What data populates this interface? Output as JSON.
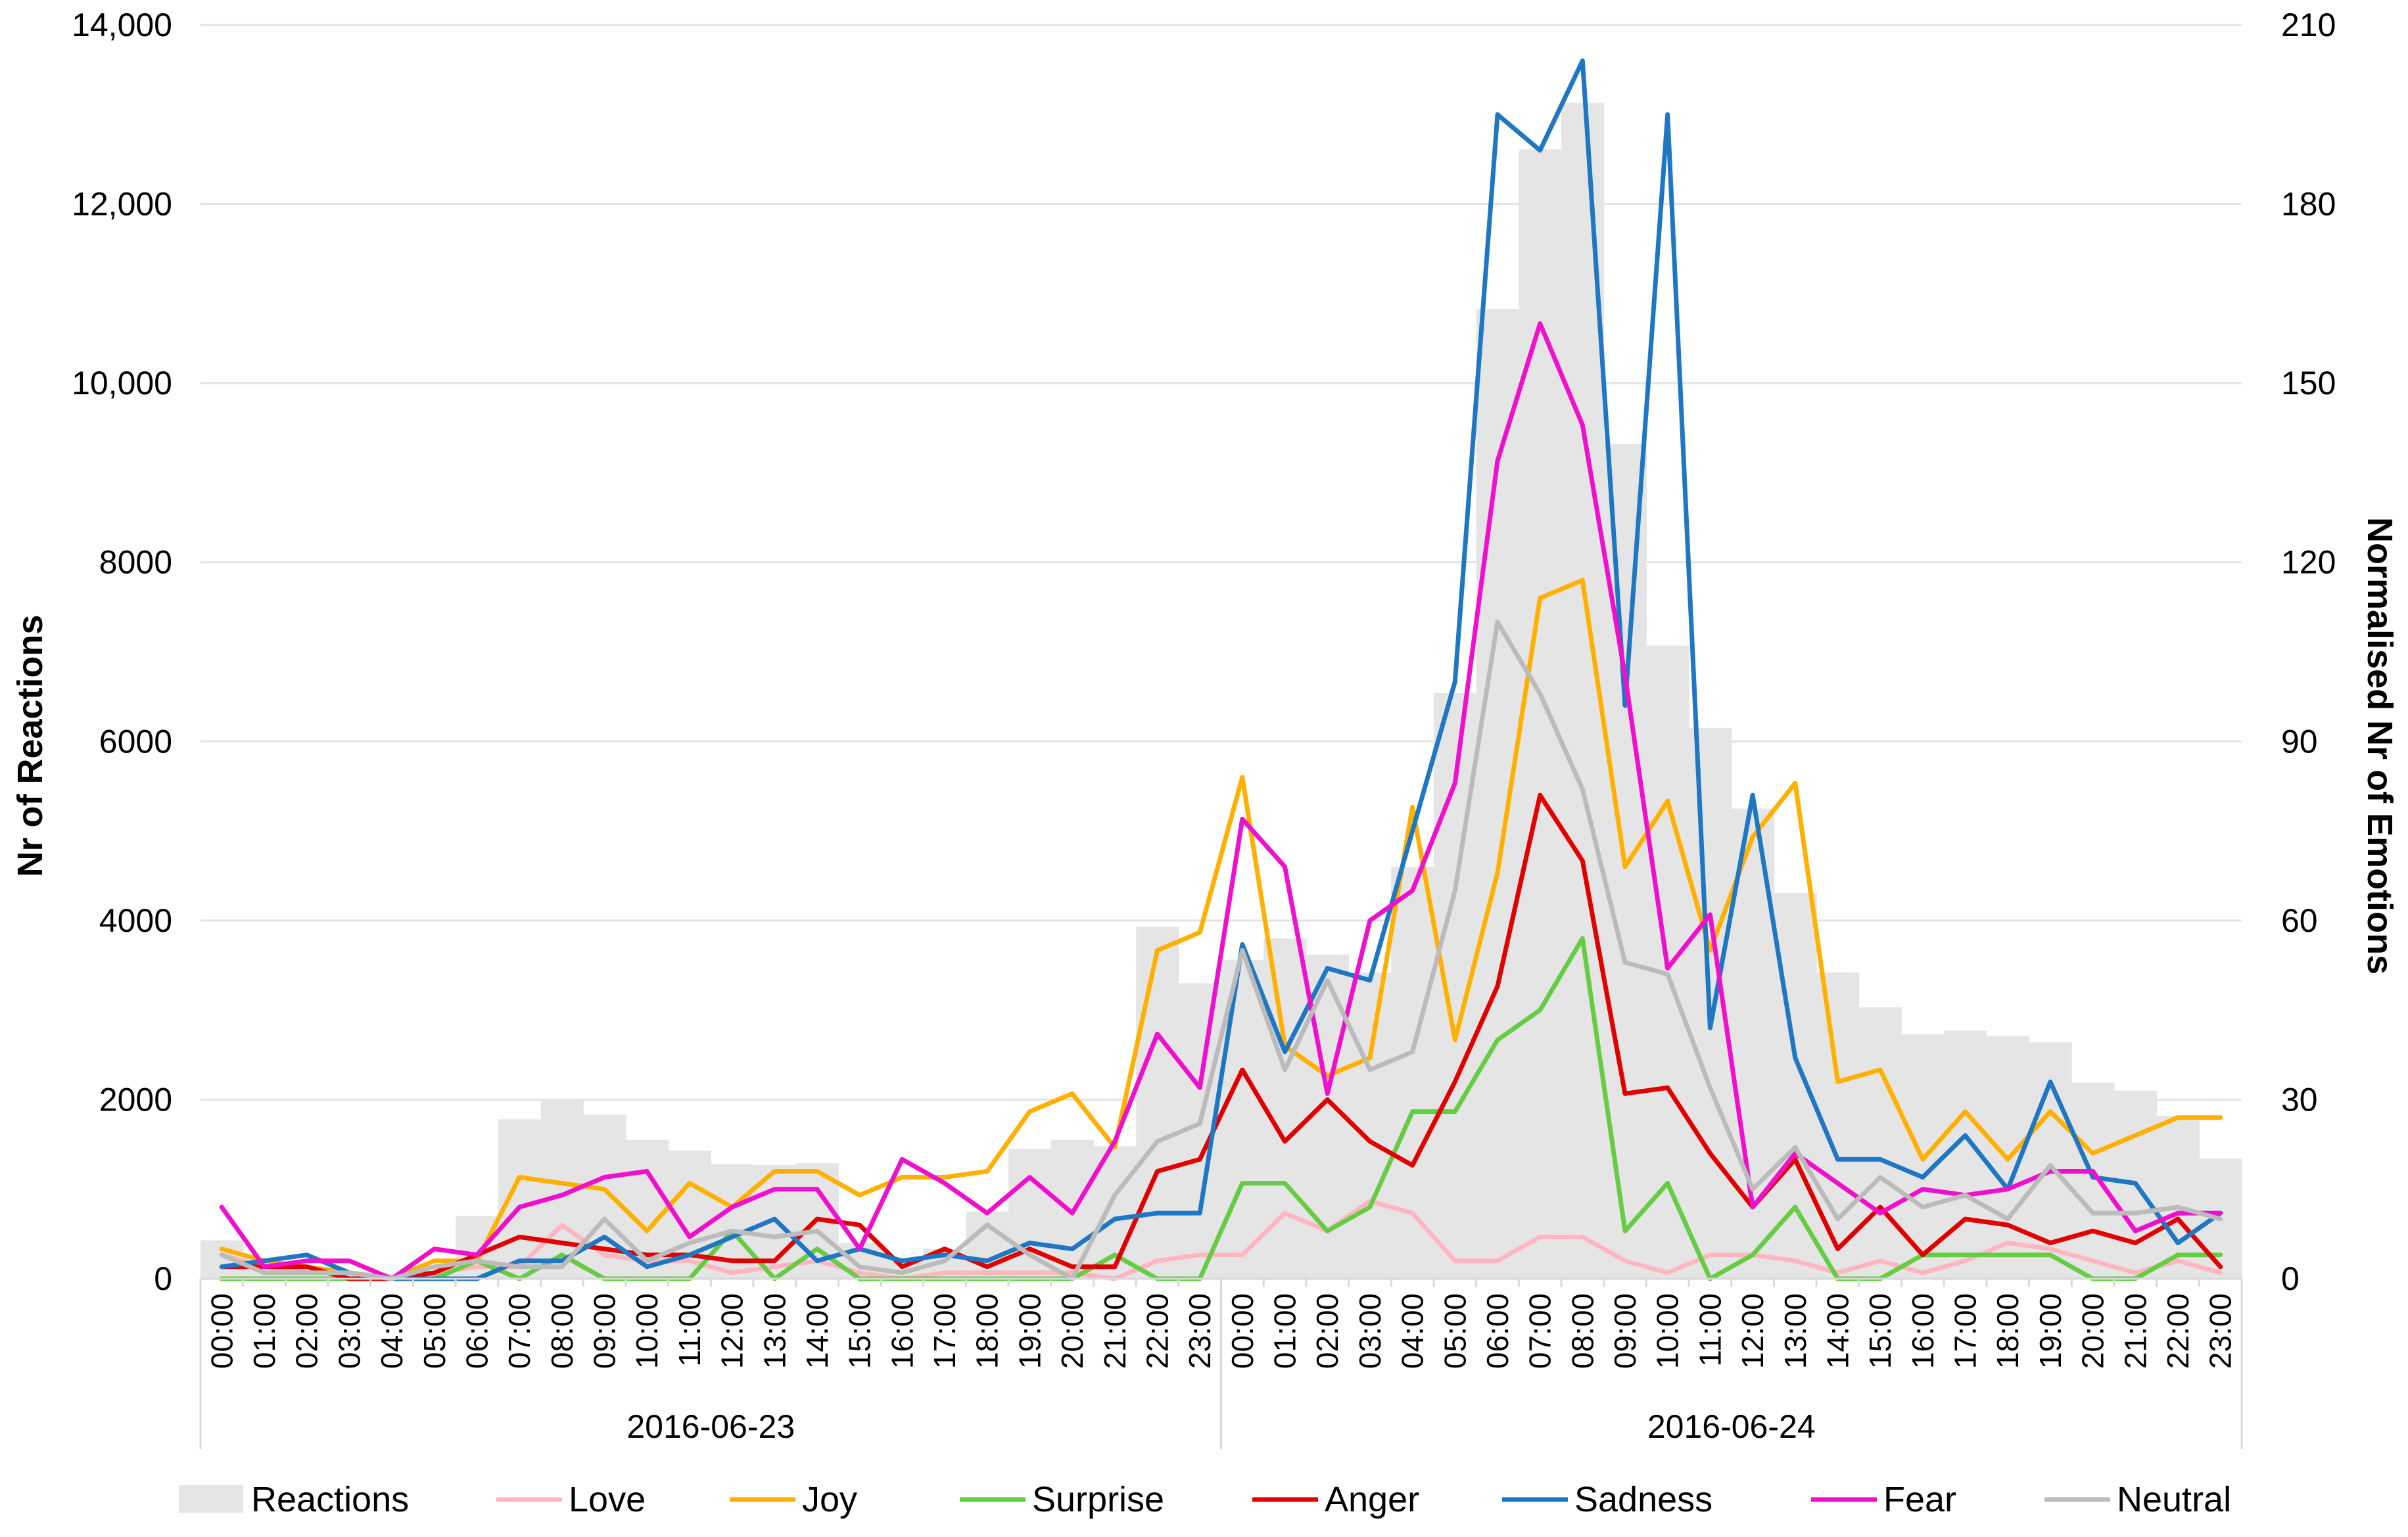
{
  "chart_data": {
    "type": "line",
    "combo": "bar-and-line (bars on left axis, lines on right axis)",
    "title": "",
    "xlabel": "",
    "ylabel_left": "Nr of Reactions",
    "ylabel_right": "Normalised Nr of Emotions",
    "ylim_left": [
      0,
      14000
    ],
    "ylim_right": [
      0,
      210
    ],
    "yticks_left": [
      "0",
      "2000",
      "4000",
      "6000",
      "8000",
      "10,000",
      "12,000",
      "14,000"
    ],
    "yticks_right": [
      "0",
      "30",
      "60",
      "90",
      "120",
      "150",
      "180",
      "210"
    ],
    "grid": "horizontal",
    "legend_position": "bottom",
    "date_groups": [
      "2016-06-23",
      "2016-06-24"
    ],
    "x": [
      "00:00",
      "01:00",
      "02:00",
      "03:00",
      "04:00",
      "05:00",
      "06:00",
      "07:00",
      "08:00",
      "09:00",
      "10:00",
      "11:00",
      "12:00",
      "13:00",
      "14:00",
      "15:00",
      "16:00",
      "17:00",
      "18:00",
      "19:00",
      "20:00",
      "21:00",
      "22:00",
      "23:00",
      "00:00",
      "01:00",
      "02:00",
      "03:00",
      "04:00",
      "05:00",
      "06:00",
      "07:00",
      "08:00",
      "09:00",
      "10:00",
      "11:00",
      "12:00",
      "13:00",
      "14:00",
      "15:00",
      "16:00",
      "17:00",
      "18:00",
      "19:00",
      "20:00",
      "21:00",
      "22:00",
      "23:00"
    ],
    "bars": {
      "name": "Reactions",
      "axis": "left",
      "color": "#e5e5e5",
      "values": [
        430,
        180,
        130,
        80,
        50,
        60,
        700,
        1780,
        2010,
        1830,
        1550,
        1430,
        1280,
        1270,
        1290,
        400,
        230,
        330,
        750,
        1450,
        1550,
        1480,
        3930,
        3300,
        3560,
        3800,
        3620,
        3420,
        4600,
        6540,
        10830,
        12610,
        13130,
        9320,
        7070,
        6150,
        5250,
        4310,
        3420,
        3030,
        2730,
        2770,
        2710,
        2640,
        2190,
        2100,
        1820,
        1340
      ]
    },
    "series": [
      {
        "name": "Love",
        "axis": "right",
        "color": "#ffb6c1",
        "values": [
          4,
          2,
          1,
          1,
          0,
          1,
          2,
          2,
          9,
          4,
          3,
          3,
          1,
          2,
          3,
          1,
          0,
          1,
          1,
          1,
          1,
          0,
          3,
          4,
          4,
          11,
          8,
          13,
          11,
          3,
          3,
          7,
          7,
          3,
          1,
          4,
          4,
          3,
          1,
          3,
          1,
          3,
          6,
          5,
          3,
          1,
          3,
          1
        ]
      },
      {
        "name": "Joy",
        "axis": "right",
        "color": "#ffb000",
        "values": [
          5,
          3,
          2,
          1,
          0,
          3,
          3,
          17,
          16,
          15,
          8,
          16,
          12,
          18,
          18,
          14,
          17,
          17,
          18,
          28,
          31,
          22,
          55,
          58,
          84,
          39,
          34,
          37,
          79,
          40,
          68,
          114,
          117,
          69,
          80,
          55,
          74,
          83,
          33,
          35,
          20,
          28,
          20,
          28,
          21,
          24,
          27,
          27
        ]
      },
      {
        "name": "Surprise",
        "axis": "right",
        "color": "#66cc44",
        "values": [
          0,
          0,
          0,
          0,
          0,
          0,
          3,
          0,
          4,
          0,
          0,
          0,
          8,
          0,
          5,
          0,
          0,
          0,
          0,
          0,
          0,
          4,
          0,
          0,
          16,
          16,
          8,
          12,
          28,
          28,
          40,
          45,
          57,
          8,
          16,
          0,
          4,
          12,
          0,
          0,
          4,
          4,
          4,
          4,
          0,
          0,
          4,
          4
        ]
      },
      {
        "name": "Anger",
        "axis": "right",
        "color": "#e00000",
        "values": [
          2,
          2,
          2,
          0,
          0,
          1,
          4,
          7,
          6,
          5,
          4,
          4,
          3,
          3,
          10,
          9,
          2,
          5,
          2,
          5,
          2,
          2,
          18,
          20,
          35,
          23,
          30,
          23,
          19,
          33,
          49,
          81,
          70,
          31,
          32,
          21,
          12,
          20,
          5,
          12,
          4,
          10,
          9,
          6,
          8,
          6,
          10,
          2
        ]
      },
      {
        "name": "Sadness",
        "axis": "right",
        "color": "#1f77c4",
        "values": [
          2,
          3,
          4,
          1,
          0,
          0,
          0,
          3,
          3,
          7,
          2,
          4,
          7,
          10,
          3,
          5,
          3,
          4,
          3,
          6,
          5,
          10,
          11,
          11,
          56,
          38,
          52,
          50,
          75,
          100,
          195,
          189,
          204,
          96,
          195,
          42,
          81,
          37,
          20,
          20,
          17,
          24,
          15,
          33,
          17,
          16,
          6,
          11
        ]
      },
      {
        "name": "Fear",
        "axis": "right",
        "color": "#ee10cc",
        "values": [
          12,
          2,
          3,
          3,
          0,
          5,
          4,
          12,
          14,
          17,
          18,
          7,
          12,
          15,
          15,
          5,
          20,
          16,
          11,
          17,
          11,
          23,
          41,
          32,
          77,
          69,
          31,
          60,
          65,
          83,
          137,
          160,
          143,
          101,
          52,
          61,
          12,
          21,
          16,
          11,
          15,
          14,
          15,
          18,
          18,
          8,
          11,
          11
        ]
      },
      {
        "name": "Neutral",
        "axis": "right",
        "color": "#bbbbbb",
        "values": [
          4,
          1,
          1,
          1,
          0,
          2,
          3,
          2,
          2,
          10,
          3,
          6,
          8,
          7,
          8,
          2,
          1,
          3,
          9,
          4,
          0,
          14,
          23,
          26,
          55,
          35,
          50,
          35,
          38,
          65,
          110,
          98,
          82,
          53,
          51,
          32,
          15,
          22,
          10,
          17,
          12,
          14,
          10,
          19,
          11,
          11,
          12,
          10
        ]
      }
    ]
  }
}
